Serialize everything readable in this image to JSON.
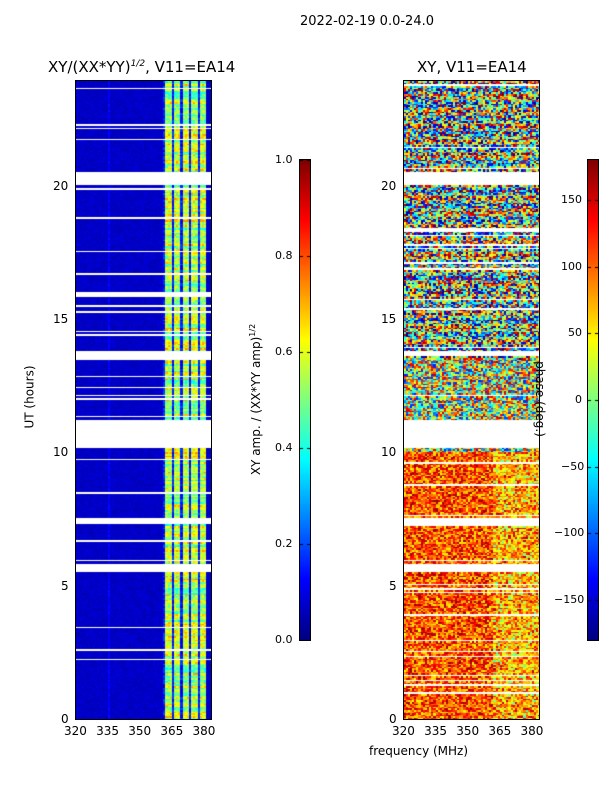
{
  "chart_data": {
    "type": "heatmap",
    "suptitle": "2022-02-19 0.0-24.0",
    "shared_xlabel": "frequency (MHz)",
    "panels": [
      {
        "title_main": "XY/(XX*YY)",
        "title_sup": "1/2",
        "title_rest": ", V11=EA14",
        "ylabel": "UT (hours)",
        "xlim": [
          320,
          384
        ],
        "ylim": [
          0,
          24
        ],
        "xticks": [
          "320",
          "335",
          "350",
          "365",
          "380"
        ],
        "xtick_values": [
          320,
          335,
          350,
          365,
          380
        ],
        "yticks": [
          "0",
          "5",
          "10",
          "15",
          "20"
        ],
        "ytick_values": [
          0,
          5,
          10,
          15,
          20
        ],
        "colorbar": {
          "label": "XY amp. / (XX*YY amp)",
          "label_sup": "1/2",
          "range": [
            0,
            1
          ],
          "ticks": [
            "0.0",
            "0.2",
            "0.4",
            "0.6",
            "0.8",
            "1.0"
          ],
          "tick_values": [
            0,
            0.2,
            0.4,
            0.6,
            0.8,
            1.0
          ],
          "colormap": "jet"
        },
        "quantity": "amplitude",
        "flagged_hours": [
          [
            20.05,
            20.5
          ],
          [
            13.5,
            13.8
          ],
          [
            10.2,
            11.2
          ],
          [
            7.3,
            7.55
          ],
          [
            5.55,
            5.8
          ]
        ],
        "signal_band_mhz": [
          361,
          380
        ]
      },
      {
        "title_main": "XY, V11=EA14",
        "ylabel": "",
        "xlim": [
          320,
          384
        ],
        "ylim": [
          0,
          24
        ],
        "xticks": [
          "320",
          "335",
          "350",
          "365",
          "380"
        ],
        "xtick_values": [
          320,
          335,
          350,
          365,
          380
        ],
        "yticks": [
          "0",
          "5",
          "10",
          "15",
          "20"
        ],
        "ytick_values": [
          0,
          5,
          10,
          15,
          20
        ],
        "colorbar": {
          "label": "phase (deg.)",
          "range": [
            -180,
            180
          ],
          "ticks": [
            "150",
            "100",
            "50",
            "0",
            "−50",
            "−100",
            "−150"
          ],
          "tick_values": [
            150,
            100,
            50,
            0,
            -50,
            -100,
            -150
          ],
          "colormap": "jet"
        },
        "quantity": "phase",
        "flagged_hours": [
          [
            20.05,
            20.5
          ],
          [
            13.6,
            13.8
          ],
          [
            10.2,
            11.2
          ],
          [
            7.3,
            7.55
          ],
          [
            5.55,
            5.8
          ]
        ]
      }
    ]
  }
}
